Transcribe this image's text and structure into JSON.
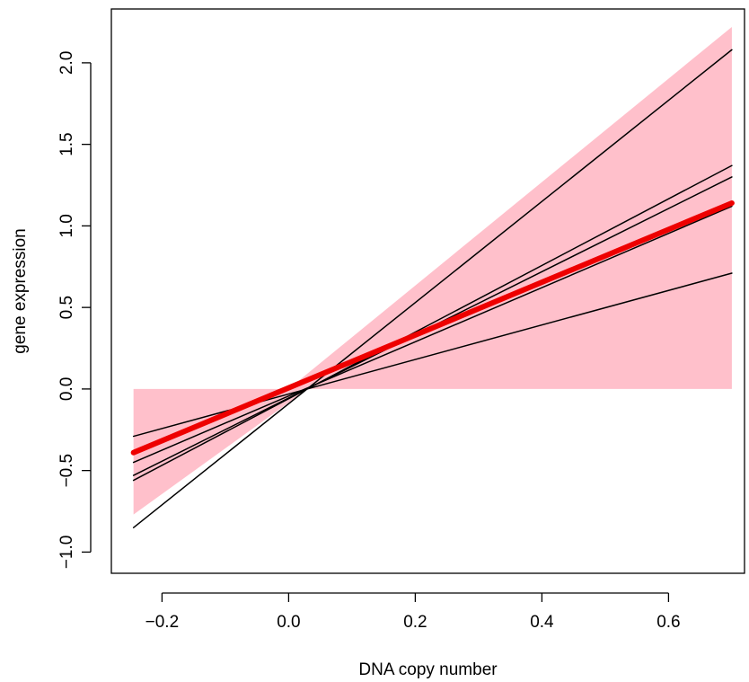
{
  "chart_data": {
    "type": "line",
    "title": "",
    "xlabel": "DNA copy number",
    "ylabel": "gene expression",
    "xlim": [
      -0.28,
      0.72
    ],
    "ylim": [
      -1.13,
      2.33
    ],
    "x_ticks": [
      -0.2,
      0.0,
      0.2,
      0.4,
      0.6
    ],
    "x_tick_labels": [
      "−0.2",
      "0.0",
      "0.2",
      "0.4",
      "0.6"
    ],
    "y_ticks": [
      -1.0,
      -0.5,
      0.0,
      0.5,
      1.0,
      1.5,
      2.0
    ],
    "y_tick_labels": [
      "−1.0",
      "−0.5",
      "0.0",
      "0.5",
      "1.0",
      "1.5",
      "2.0"
    ],
    "band": {
      "color": "#ffc0cb",
      "upper": [
        {
          "x": -0.245,
          "y": 0.0
        },
        {
          "x": 0.0,
          "y": 0.0
        },
        {
          "x": 0.7,
          "y": 2.22
        }
      ],
      "lower": [
        {
          "x": -0.245,
          "y": -0.77
        },
        {
          "x": 0.03,
          "y": 0.0
        },
        {
          "x": 0.7,
          "y": 0.0
        }
      ]
    },
    "lines": [
      {
        "color": "#000000",
        "width": 1.5,
        "points": [
          {
            "x": -0.245,
            "y": -0.85
          },
          {
            "x": 0.7,
            "y": 2.08
          }
        ]
      },
      {
        "color": "#000000",
        "width": 1.5,
        "points": [
          {
            "x": -0.245,
            "y": -0.56
          },
          {
            "x": 0.7,
            "y": 1.37
          }
        ]
      },
      {
        "color": "#000000",
        "width": 1.5,
        "points": [
          {
            "x": -0.245,
            "y": -0.53
          },
          {
            "x": 0.7,
            "y": 1.3
          }
        ]
      },
      {
        "color": "#000000",
        "width": 1.5,
        "points": [
          {
            "x": -0.245,
            "y": -0.45
          },
          {
            "x": 0.7,
            "y": 1.12
          }
        ]
      },
      {
        "color": "#000000",
        "width": 1.5,
        "points": [
          {
            "x": -0.245,
            "y": -0.29
          },
          {
            "x": 0.7,
            "y": 0.71
          }
        ]
      },
      {
        "color": "#ee0000",
        "width": 6,
        "points": [
          {
            "x": -0.245,
            "y": -0.39
          },
          {
            "x": 0.7,
            "y": 1.14
          }
        ]
      }
    ]
  }
}
